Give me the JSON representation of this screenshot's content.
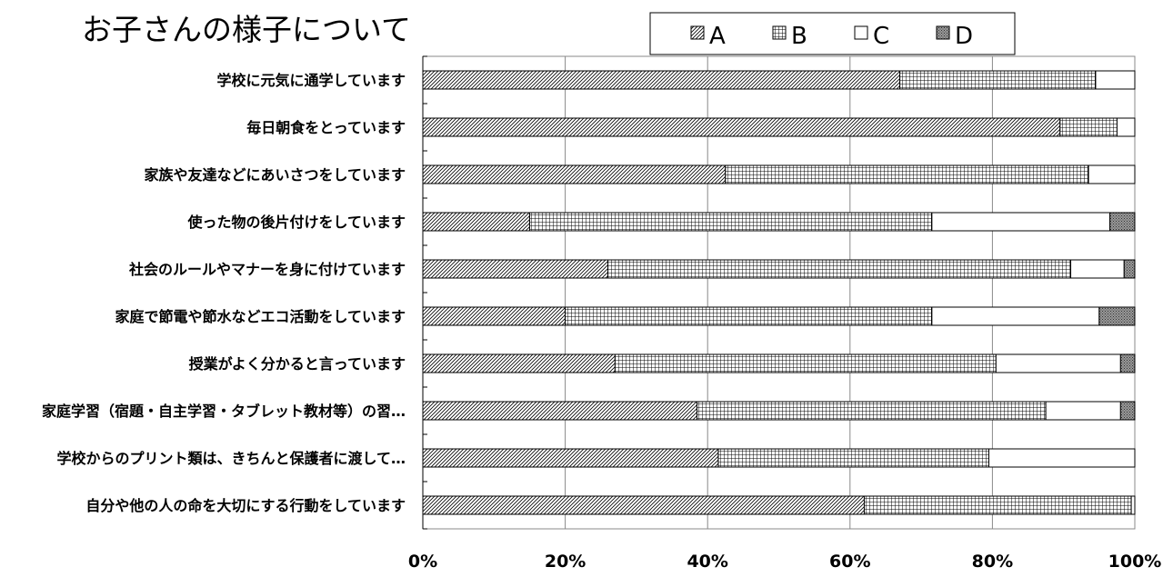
{
  "chart_data": {
    "type": "bar",
    "orientation": "horizontal",
    "stacked": "percent",
    "title": "お子さんの様子について",
    "categories": [
      "学校に元気に通学しています",
      "毎日朝食をとっています",
      "家族や友達などにあいさつをしています",
      "使った物の後片付けをしています",
      "社会のルールやマナーを身に付けています",
      "家庭で節電や節水などエコ活動をしています",
      "授業がよく分かると言っています",
      "家庭学習（宿題・自主学習・タブレット教材等）の習…",
      "学校からのプリント類は、きちんと保護者に渡して…",
      "自分や他の人の命を大切にする行動をしています"
    ],
    "series": [
      {
        "name": "A",
        "values": [
          67,
          89.5,
          42.5,
          15,
          26,
          20,
          27,
          38.5,
          41.5,
          62
        ],
        "pattern": "diagonal-hatch"
      },
      {
        "name": "B",
        "values": [
          27.5,
          8,
          51,
          56.5,
          65,
          51.5,
          53.5,
          49,
          38,
          37.5
        ],
        "pattern": "grid"
      },
      {
        "name": "C",
        "values": [
          5.5,
          2.5,
          6.5,
          25,
          7.5,
          23.5,
          17.5,
          10.5,
          20.5,
          0.5
        ],
        "pattern": "white"
      },
      {
        "name": "D",
        "values": [
          0,
          0,
          0,
          3.5,
          1.5,
          5,
          2,
          2,
          0,
          0
        ],
        "pattern": "dense-dots"
      }
    ],
    "xlim": [
      0,
      100
    ],
    "xticks": [
      "0%",
      "20%",
      "40%",
      "60%",
      "80%",
      "100%"
    ],
    "grid": true,
    "legend_position": "top-right"
  }
}
